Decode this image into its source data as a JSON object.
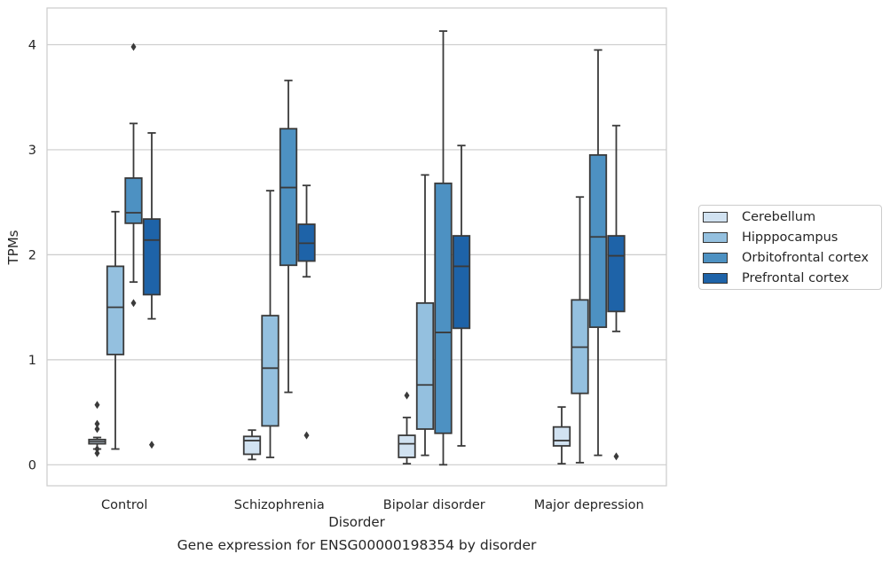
{
  "caption": "Gene expression for ENSG00000198354 by disorder",
  "chart_data": {
    "type": "box",
    "xlabel": "Disorder",
    "ylabel": "TPMs",
    "ylim": [
      -0.2,
      4.35
    ],
    "yticks": [
      0,
      1,
      2,
      3,
      4
    ],
    "grid": "horizontal",
    "legend_position": "right",
    "categories": [
      "Control",
      "Schizophrenia",
      "Bipolar disorder",
      "Major depression"
    ],
    "series": [
      {
        "name": "Cerebellum",
        "color": "#d1e2f1",
        "boxes": [
          {
            "whisker_low": 0.15,
            "q1": 0.2,
            "median": 0.22,
            "q3": 0.24,
            "whisker_high": 0.26,
            "outliers": [
              0.57,
              0.39,
              0.34,
              0.15,
              0.11
            ]
          },
          {
            "whisker_low": 0.05,
            "q1": 0.1,
            "median": 0.23,
            "q3": 0.27,
            "whisker_high": 0.33,
            "outliers": []
          },
          {
            "whisker_low": 0.01,
            "q1": 0.07,
            "median": 0.2,
            "q3": 0.28,
            "whisker_high": 0.45,
            "outliers": [
              0.66
            ]
          },
          {
            "whisker_low": 0.01,
            "q1": 0.18,
            "median": 0.23,
            "q3": 0.36,
            "whisker_high": 0.55,
            "outliers": []
          }
        ]
      },
      {
        "name": "Hipppocampus",
        "color": "#94c0df",
        "boxes": [
          {
            "whisker_low": 0.15,
            "q1": 1.05,
            "median": 1.5,
            "q3": 1.89,
            "whisker_high": 2.41,
            "outliers": []
          },
          {
            "whisker_low": 0.07,
            "q1": 0.37,
            "median": 0.92,
            "q3": 1.42,
            "whisker_high": 2.61,
            "outliers": []
          },
          {
            "whisker_low": 0.09,
            "q1": 0.34,
            "median": 0.76,
            "q3": 1.54,
            "whisker_high": 2.76,
            "outliers": []
          },
          {
            "whisker_low": 0.02,
            "q1": 0.68,
            "median": 1.12,
            "q3": 1.57,
            "whisker_high": 2.55,
            "outliers": []
          }
        ]
      },
      {
        "name": "Orbitofrontal cortex",
        "color": "#4d91c2",
        "boxes": [
          {
            "whisker_low": 1.74,
            "q1": 2.3,
            "median": 2.4,
            "q3": 2.73,
            "whisker_high": 3.25,
            "outliers": [
              3.98,
              1.54
            ]
          },
          {
            "whisker_low": 0.69,
            "q1": 1.9,
            "median": 2.64,
            "q3": 3.2,
            "whisker_high": 3.66,
            "outliers": []
          },
          {
            "whisker_low": 0.0,
            "q1": 0.3,
            "median": 1.26,
            "q3": 2.68,
            "whisker_high": 4.13,
            "outliers": []
          },
          {
            "whisker_low": 0.09,
            "q1": 1.31,
            "median": 2.17,
            "q3": 2.95,
            "whisker_high": 3.95,
            "outliers": []
          }
        ]
      },
      {
        "name": "Prefrontal cortex",
        "color": "#1e63a8",
        "boxes": [
          {
            "whisker_low": 1.39,
            "q1": 1.62,
            "median": 2.14,
            "q3": 2.34,
            "whisker_high": 3.16,
            "outliers": [
              0.19
            ]
          },
          {
            "whisker_low": 1.79,
            "q1": 1.94,
            "median": 2.11,
            "q3": 2.29,
            "whisker_high": 2.66,
            "outliers": [
              0.28
            ]
          },
          {
            "whisker_low": 0.18,
            "q1": 1.3,
            "median": 1.89,
            "q3": 2.18,
            "whisker_high": 3.04,
            "outliers": []
          },
          {
            "whisker_low": 1.27,
            "q1": 1.46,
            "median": 1.99,
            "q3": 2.18,
            "whisker_high": 3.23,
            "outliers": [
              0.08
            ]
          }
        ]
      }
    ]
  }
}
